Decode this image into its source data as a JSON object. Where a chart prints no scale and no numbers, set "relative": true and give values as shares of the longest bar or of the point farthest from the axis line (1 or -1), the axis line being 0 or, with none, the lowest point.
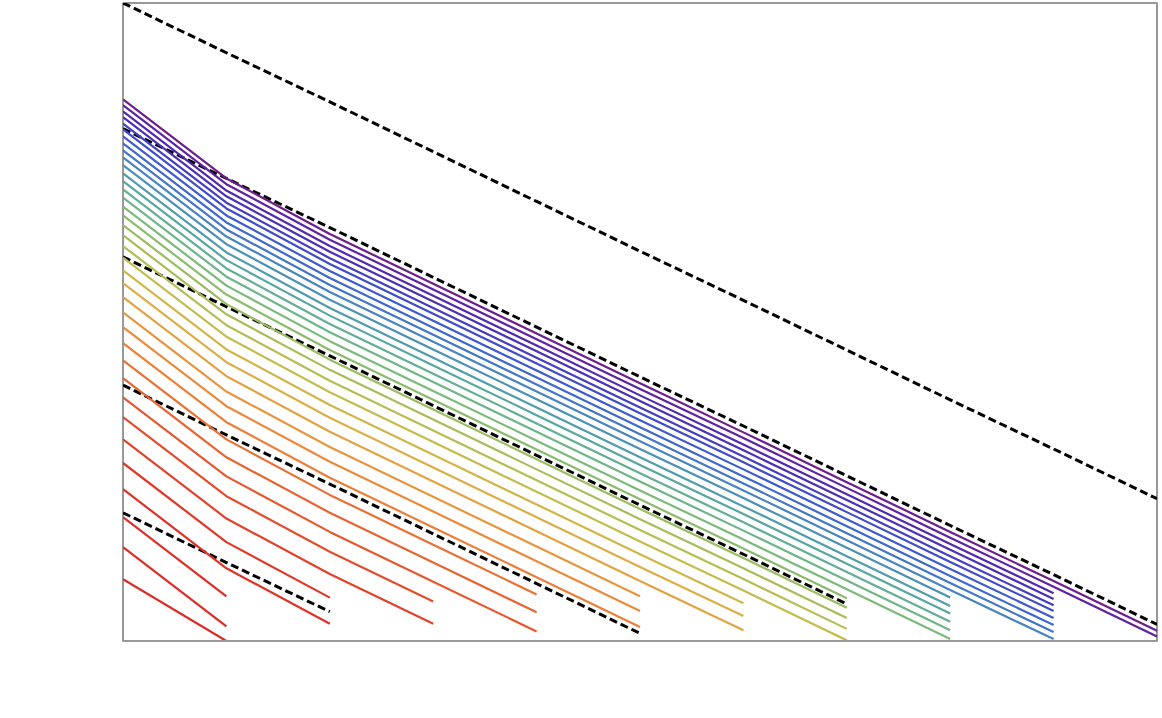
{
  "chart_data": {
    "type": "line",
    "relative": true,
    "categories": [
      null,
      null,
      null,
      null,
      null,
      null,
      null,
      null,
      null,
      null,
      null
    ],
    "series": [
      {
        "color": "#000000",
        "line_style": "dashed",
        "values": [
          1,
          0.922,
          0.845,
          0.767,
          0.689,
          0.611,
          0.534,
          0.456,
          0.378,
          0.301,
          0.223
        ]
      },
      {
        "color": "#000000",
        "line_style": "dashed",
        "values": [
          0.803,
          0.725,
          0.648,
          0.57,
          0.492,
          0.414,
          0.337,
          0.259,
          0.181,
          0.104,
          0.026
        ]
      },
      {
        "color": "#000000",
        "line_style": "dashed",
        "values": [
          0.602,
          0.524,
          0.447,
          0.369,
          0.291,
          0.213,
          0.136,
          0.058,
          null,
          null,
          null
        ]
      },
      {
        "color": "#000000",
        "line_style": "dashed",
        "values": [
          0.401,
          0.323,
          0.246,
          0.168,
          0.09,
          0.012,
          null,
          null,
          null,
          null,
          null
        ]
      },
      {
        "color": "#000000",
        "line_style": "dashed",
        "values": [
          0.201,
          0.123,
          0.046,
          null,
          null,
          null,
          null,
          null,
          null,
          null,
          null
        ]
      },
      {
        "color": "#6e1e8a",
        "values": [
          0.849,
          0.725,
          0.638,
          0.56,
          0.482,
          0.404,
          0.327,
          0.249,
          0.171,
          0.094,
          0.016
        ]
      },
      {
        "color": "#5f22a0",
        "values": [
          0.84,
          0.716,
          0.629,
          0.551,
          0.473,
          0.395,
          0.318,
          0.24,
          0.162,
          0.085,
          0.007
        ]
      },
      {
        "color": "#5228ae",
        "values": [
          0.83,
          0.706,
          0.619,
          0.541,
          0.463,
          0.385,
          0.308,
          0.23,
          0.152,
          0.075,
          null
        ]
      },
      {
        "color": "#4a30b4",
        "values": [
          0.821,
          0.697,
          0.61,
          0.532,
          0.454,
          0.376,
          0.299,
          0.221,
          0.143,
          0.066,
          null
        ]
      },
      {
        "color": "#443ec0",
        "values": [
          0.811,
          0.687,
          0.6,
          0.522,
          0.444,
          0.366,
          0.289,
          0.211,
          0.133,
          0.056,
          null
        ]
      },
      {
        "color": "#3f4cca",
        "values": [
          0.802,
          0.678,
          0.591,
          0.513,
          0.435,
          0.357,
          0.28,
          0.202,
          0.124,
          0.047,
          null
        ]
      },
      {
        "color": "#3d5ad2",
        "values": [
          0.791,
          0.667,
          0.58,
          0.502,
          0.424,
          0.346,
          0.269,
          0.191,
          0.113,
          0.036,
          null
        ]
      },
      {
        "color": "#3e68d0",
        "values": [
          0.78,
          0.656,
          0.569,
          0.491,
          0.413,
          0.335,
          0.258,
          0.18,
          0.102,
          0.025,
          null
        ]
      },
      {
        "color": "#4276c8",
        "values": [
          0.769,
          0.645,
          0.558,
          0.48,
          0.402,
          0.324,
          0.247,
          0.169,
          0.091,
          0.014,
          null
        ]
      },
      {
        "color": "#4784c0",
        "values": [
          0.758,
          0.634,
          0.547,
          0.469,
          0.391,
          0.313,
          0.236,
          0.158,
          0.08,
          0.003,
          null
        ]
      },
      {
        "color": "#4b90b6",
        "values": [
          0.746,
          0.622,
          0.535,
          0.457,
          0.379,
          0.301,
          0.224,
          0.146,
          0.068,
          null,
          null
        ]
      },
      {
        "color": "#519cab",
        "values": [
          0.733,
          0.609,
          0.522,
          0.444,
          0.366,
          0.288,
          0.211,
          0.133,
          0.055,
          null,
          null
        ]
      },
      {
        "color": "#58a6a0",
        "values": [
          0.721,
          0.597,
          0.51,
          0.432,
          0.354,
          0.276,
          0.199,
          0.121,
          0.043,
          null,
          null
        ]
      },
      {
        "color": "#63ae94",
        "values": [
          0.708,
          0.584,
          0.497,
          0.419,
          0.341,
          0.263,
          0.186,
          0.108,
          0.03,
          null,
          null
        ]
      },
      {
        "color": "#6eb587",
        "values": [
          0.695,
          0.571,
          0.484,
          0.406,
          0.328,
          0.25,
          0.173,
          0.095,
          0.017,
          null,
          null
        ]
      },
      {
        "color": "#7bba7a",
        "values": [
          0.681,
          0.557,
          0.47,
          0.392,
          0.314,
          0.236,
          0.159,
          0.081,
          0.003,
          null,
          null
        ]
      },
      {
        "color": "#8abc6c",
        "values": [
          0.667,
          0.543,
          0.456,
          0.378,
          0.3,
          0.222,
          0.145,
          0.067,
          null,
          null,
          null
        ]
      },
      {
        "color": "#99bd60",
        "values": [
          0.652,
          0.528,
          0.441,
          0.363,
          0.285,
          0.207,
          0.13,
          0.052,
          null,
          null,
          null
        ]
      },
      {
        "color": "#a8bd58",
        "values": [
          0.636,
          0.512,
          0.425,
          0.347,
          0.269,
          0.191,
          0.114,
          0.036,
          null,
          null,
          null
        ]
      },
      {
        "color": "#b6bd52",
        "values": [
          0.619,
          0.495,
          0.408,
          0.33,
          0.252,
          0.174,
          0.097,
          0.019,
          null,
          null,
          null
        ]
      },
      {
        "color": "#c4bc4c",
        "values": [
          0.601,
          0.477,
          0.39,
          0.312,
          0.234,
          0.156,
          0.079,
          0.001,
          null,
          null,
          null
        ]
      },
      {
        "color": "#d0b648",
        "values": [
          0.581,
          0.457,
          0.37,
          0.292,
          0.214,
          0.136,
          0.059,
          null,
          null,
          null,
          null
        ]
      },
      {
        "color": "#dcae46",
        "values": [
          0.561,
          0.437,
          0.35,
          0.272,
          0.194,
          0.116,
          0.039,
          null,
          null,
          null,
          null
        ]
      },
      {
        "color": "#e2a242",
        "values": [
          0.539,
          0.415,
          0.328,
          0.25,
          0.172,
          0.094,
          0.017,
          null,
          null,
          null,
          null
        ]
      },
      {
        "color": "#e6963e",
        "values": [
          0.515,
          0.391,
          0.304,
          0.226,
          0.148,
          0.07,
          null,
          null,
          null,
          null,
          null
        ]
      },
      {
        "color": "#ea8a3a",
        "values": [
          0.492,
          0.368,
          0.281,
          0.203,
          0.125,
          0.047,
          null,
          null,
          null,
          null,
          null
        ]
      },
      {
        "color": "#ec7e37",
        "values": [
          0.467,
          0.343,
          0.256,
          0.178,
          0.1,
          0.022,
          null,
          null,
          null,
          null,
          null
        ]
      },
      {
        "color": "#ea7034",
        "values": [
          0.44,
          0.316,
          0.229,
          0.151,
          0.073,
          null,
          null,
          null,
          null,
          null,
          null
        ]
      },
      {
        "color": "#e86430",
        "values": [
          0.412,
          0.288,
          0.201,
          0.123,
          0.045,
          null,
          null,
          null,
          null,
          null,
          null
        ]
      },
      {
        "color": "#e6582e",
        "values": [
          0.382,
          0.258,
          0.171,
          0.093,
          0.015,
          null,
          null,
          null,
          null,
          null,
          null
        ]
      },
      {
        "color": "#e44c2c",
        "values": [
          0.351,
          0.227,
          0.14,
          0.062,
          null,
          null,
          null,
          null,
          null,
          null,
          null
        ]
      },
      {
        "color": "#e2422a",
        "values": [
          0.316,
          0.192,
          0.105,
          0.027,
          null,
          null,
          null,
          null,
          null,
          null,
          null
        ]
      },
      {
        "color": "#e03828",
        "values": [
          0.279,
          0.155,
          0.068,
          null,
          null,
          null,
          null,
          null,
          null,
          null,
          null
        ]
      },
      {
        "color": "#df3227",
        "values": [
          0.238,
          0.114,
          0.027,
          null,
          null,
          null,
          null,
          null,
          null,
          null,
          null
        ]
      },
      {
        "color": "#de2e26",
        "values": [
          0.194,
          0.07,
          null,
          null,
          null,
          null,
          null,
          null,
          null,
          null,
          null
        ]
      },
      {
        "color": "#dd2b25",
        "values": [
          0.147,
          0.023,
          null,
          null,
          null,
          null,
          null,
          null,
          null,
          null,
          null
        ]
      },
      {
        "color": "#dc2a25",
        "values": [
          0.097,
          0,
          null,
          null,
          null,
          null,
          null,
          null,
          null,
          null,
          null
        ]
      }
    ]
  }
}
